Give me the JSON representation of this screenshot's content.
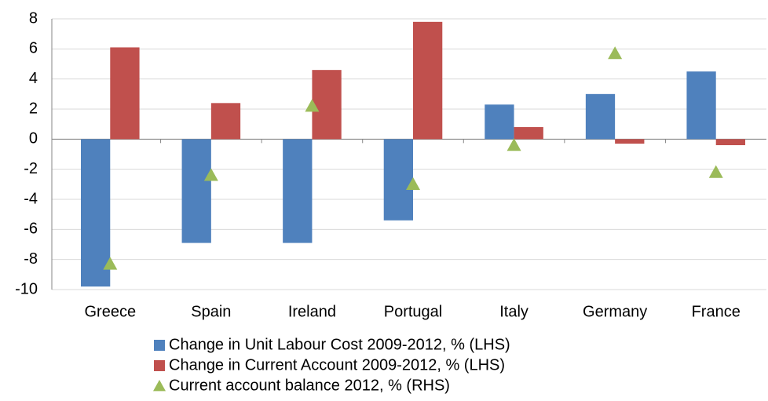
{
  "chart_data": {
    "type": "bar",
    "categories": [
      "Greece",
      "Spain",
      "Ireland",
      "Portugal",
      "Italy",
      "Germany",
      "France"
    ],
    "series": [
      {
        "name": "Change in Unit Labour Cost 2009-2012, % (LHS)",
        "color": "#4f81bd",
        "values": [
          -9.8,
          -6.9,
          -6.9,
          -5.4,
          2.3,
          3.0,
          4.5
        ]
      },
      {
        "name": "Change in Current Account 2009-2012, % (LHS)",
        "color": "#c0504d",
        "values": [
          6.1,
          2.4,
          4.6,
          7.8,
          0.8,
          -0.3,
          -0.4
        ]
      },
      {
        "name": "Current account balance 2012, % (RHS)",
        "color": "#9bbb59",
        "type": "scatter",
        "marker": "triangle",
        "values": [
          -8.3,
          -2.4,
          2.2,
          -3.0,
          -0.4,
          5.7,
          -2.2
        ]
      }
    ],
    "ylim": [
      -10,
      8
    ],
    "yticks": [
      -10,
      -8,
      -6,
      -4,
      -2,
      0,
      2,
      4,
      6,
      8
    ],
    "grid": true,
    "legend": "bottom"
  }
}
